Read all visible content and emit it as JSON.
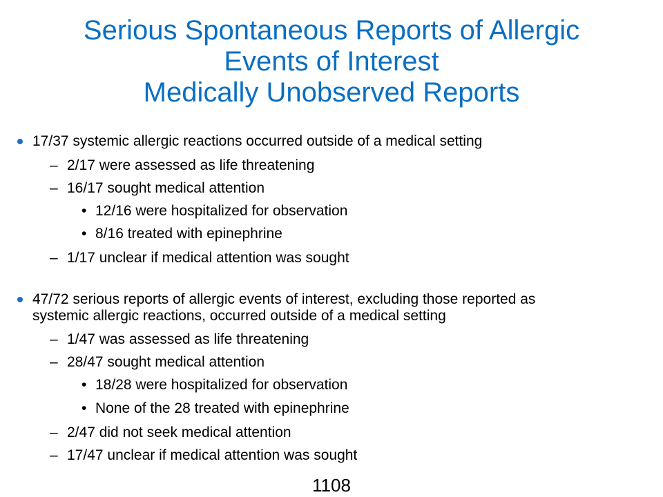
{
  "title": {
    "line1": "Serious Spontaneous Reports of Allergic",
    "line2": "Events of Interest",
    "line3": "Medically Unobserved Reports"
  },
  "section1": {
    "main": "17/37 systemic allergic reactions occurred outside of a medical setting",
    "sub1": "2/17 were assessed as life threatening",
    "sub2": "16/17 sought medical attention",
    "sub2a": "12/16 were hospitalized for observation",
    "sub2b": "8/16 treated with epinephrine",
    "sub3": "1/17 unclear if medical attention was sought"
  },
  "section2": {
    "main_line1": "47/72 serious reports of allergic events of interest, excluding those reported as",
    "main_line2": "systemic allergic reactions, occurred outside of a medical setting",
    "sub1": "1/47 was assessed as life threatening",
    "sub2": "28/47 sought medical attention",
    "sub2a": "18/28 were hospitalized for observation",
    "sub2b": "None of the 28 treated with epinephrine",
    "sub3": "2/47 did not seek medical attention",
    "sub4": "17/47 unclear if medical attention was sought"
  },
  "markers": {
    "dash": "–",
    "dot": "•"
  },
  "page_number": "1108",
  "colors": {
    "title": "#0a6fc2",
    "bullet": "#1f6fc7",
    "text": "#000000"
  }
}
